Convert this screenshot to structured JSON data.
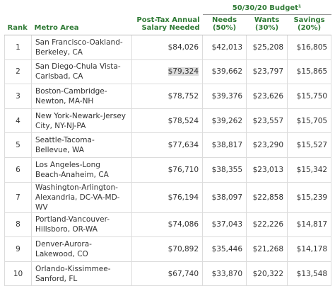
{
  "table": {
    "group_header": "50/30/20 Budget¹",
    "headers": [
      "Rank",
      "Metro Area",
      "Post-Tax Annual Salary Needed",
      "Needs (50%)",
      "Wants (30%)",
      "Savings (20%)"
    ],
    "rows": [
      [
        "1",
        "San Francisco-Oakland-Berkeley, CA",
        "$84,026",
        "$42,013",
        "$25,208",
        "$16,805"
      ],
      [
        "2",
        "San Diego-Chula Vista-Carlsbad, CA",
        "$79,324",
        "$39,662",
        "$23,797",
        "$15,865"
      ],
      [
        "3",
        "Boston-Cambridge-Newton, MA-NH",
        "$78,752",
        "$39,376",
        "$23,626",
        "$15,750"
      ],
      [
        "4",
        "New York-Newark-Jersey City, NY-NJ-PA",
        "$78,524",
        "$39,262",
        "$23,557",
        "$15,705"
      ],
      [
        "5",
        "Seattle-Tacoma-Bellevue, WA",
        "$77,634",
        "$38,817",
        "$23,290",
        "$15,527"
      ],
      [
        "6",
        "Los Angeles-Long Beach-Anaheim, CA",
        "$76,710",
        "$38,355",
        "$23,013",
        "$15,342"
      ],
      [
        "7",
        "Washington-Arlington-Alexandria, DC-VA-MD-WV",
        "$76,194",
        "$38,097",
        "$22,858",
        "$15,239"
      ],
      [
        "8",
        "Portland-Vancouver-Hillsboro, OR-WA",
        "$74,086",
        "$37,043",
        "$22,226",
        "$14,817"
      ],
      [
        "9",
        "Denver-Aurora-Lakewood, CO",
        "$70,892",
        "$35,446",
        "$21,268",
        "$14,178"
      ],
      [
        "10",
        "Orlando-Kissimmee-Sanford, FL",
        "$67,740",
        "$33,870",
        "$20,322",
        "$13,548"
      ]
    ]
  }
}
